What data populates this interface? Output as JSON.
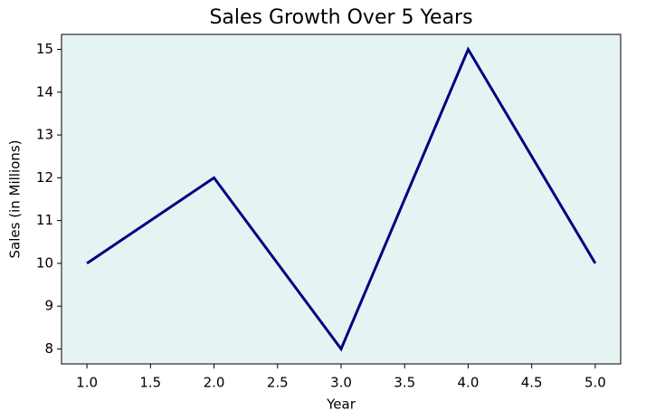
{
  "chart_data": {
    "type": "line",
    "title": "Sales Growth Over 5 Years",
    "x_label": "Year",
    "y_label": "Sales (in Millions)",
    "x": [
      1,
      2,
      3,
      4,
      5
    ],
    "series": [
      {
        "color": "#000080",
        "values": [
          10,
          12,
          8,
          15,
          10
        ]
      }
    ],
    "xlim": [
      0.8,
      5.2
    ],
    "xticks": [
      {
        "value": 1,
        "label": "1.0"
      },
      1.5,
      {
        "value": 2,
        "label": "2.0"
      },
      2.5,
      {
        "value": 3,
        "label": "3.0"
      },
      3.5,
      {
        "value": 4,
        "label": "4.0"
      },
      4.5,
      {
        "value": 5,
        "label": "5.0"
      }
    ],
    "ylim": [
      7.65,
      15.35
    ],
    "yticks": [
      8,
      9,
      10,
      11,
      12,
      13,
      14,
      15
    ],
    "background": "#e5f4f2",
    "grid": false
  }
}
